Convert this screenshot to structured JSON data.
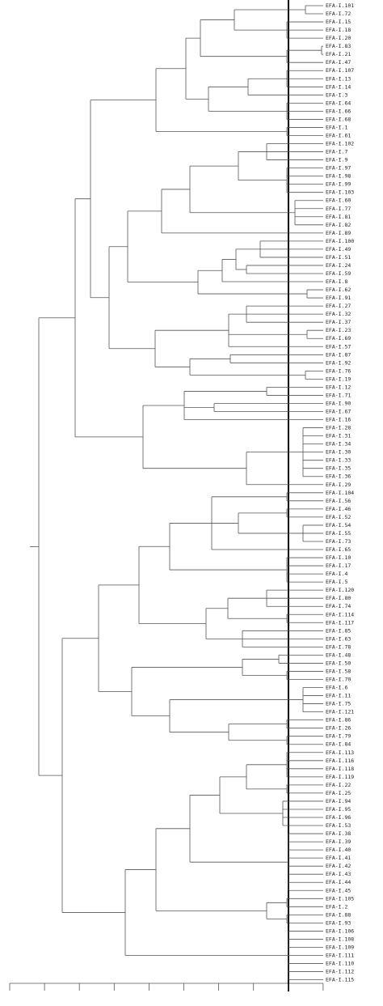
{
  "labels": [
    "EFA-I.101",
    "EFA-I.72",
    "EFA-I.15",
    "EFA-I.18",
    "EFA-I.20",
    "EFA-I.83",
    "EFA-I.21",
    "EFA-I.47",
    "EFA-I.107",
    "EFA-I.13",
    "EFA-I.14",
    "EFA-I.3",
    "EFA-I.64",
    "EFA-I.66",
    "EFA-I.68",
    "EFA-I.1",
    "EFA-I.61",
    "EFA-I.102",
    "EFA-I.7",
    "EFA-I.9",
    "EFA-I.97",
    "EFA-I.98",
    "EFA-I.99",
    "EFA-I.103",
    "EFA-I.60",
    "EFA-I.77",
    "EFA-I.81",
    "EFA-I.82",
    "EFA-I.89",
    "EFA-I.100",
    "EFA-I.49",
    "EFA-I.51",
    "EFA-I.24",
    "EFA-I.59",
    "EFA-I.8",
    "EFA-I.62",
    "EFA-I.91",
    "EFA-I.27",
    "EFA-I.32",
    "EFA-I.37",
    "EFA-I.23",
    "EFA-I.69",
    "EFA-I.57",
    "EFA-I.87",
    "EFA-I.92",
    "EFA-I.76",
    "EFA-I.19",
    "EFA-I.12",
    "EFA-I.71",
    "EFA-I.90",
    "EFA-I.67",
    "EFA-I.16",
    "EFA-I.28",
    "EFA-I.31",
    "EFA-I.34",
    "EFA-I.30",
    "EFA-I.33",
    "EFA-I.35",
    "EFA-I.36",
    "EFA-I.29",
    "EFA-I.104",
    "EFA-I.56",
    "EFA-I.46",
    "EFA-I.52",
    "EFA-I.54",
    "EFA-I.55",
    "EFA-I.73",
    "EFA-I.65",
    "EFA-I.10",
    "EFA-I.17",
    "EFA-I.4",
    "EFA-I.5",
    "EFA-I.120",
    "EFA-I.80",
    "EFA-I.74",
    "EFA-I.114",
    "EFA-I.117",
    "EFA-I.85",
    "EFA-I.63",
    "EFA-I.78",
    "EFA-I.48",
    "EFA-I.50",
    "EFA-I.58",
    "EFA-I.70",
    "EFA-I.6",
    "EFA-I.11",
    "EFA-I.75",
    "EFA-I.121",
    "EFA-I.86",
    "EFA-I.26",
    "EFA-I.79",
    "EFA-I.84",
    "EFA-I.113",
    "EFA-I.116",
    "EFA-I.118",
    "EFA-I.119",
    "EFA-I.22",
    "EFA-I.25",
    "EFA-I.94",
    "EFA-I.95",
    "EFA-I.96",
    "EFA-I.53",
    "EFA-I.38",
    "EFA-I.39",
    "EFA-I.40",
    "EFA-I.41",
    "EFA-I.42",
    "EFA-I.43",
    "EFA-I.44",
    "EFA-I.45",
    "EFA-I.105",
    "EFA-I.2",
    "EFA-I.88",
    "EFA-I.93",
    "EFA-I.106",
    "EFA-I.108",
    "EFA-I.109",
    "EFA-I.111",
    "EFA-I.110",
    "EFA-I.112",
    "EFA-I.115"
  ]
}
